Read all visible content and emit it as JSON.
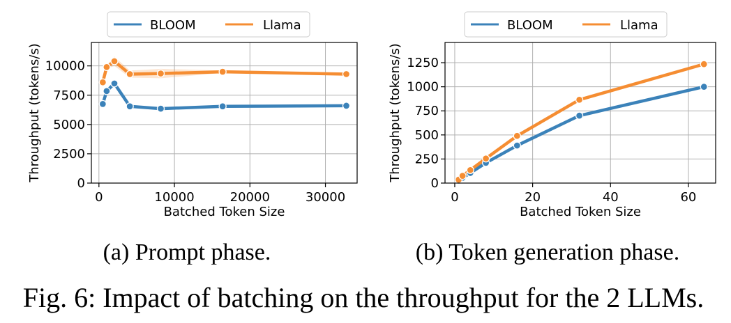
{
  "figure": {
    "caption": "Fig. 6: Impact of batching on the throughput for the 2 LLMs."
  },
  "colors": {
    "bloom": "#3b82b9",
    "llama": "#f58d32",
    "grid": "#b0b0b0"
  },
  "chart_data": [
    {
      "type": "line",
      "subcaption": "(a) Prompt phase.",
      "xlabel": "Batched Token Size",
      "ylabel": "Throughput (tokens/s)",
      "xlim": [
        -1000,
        34200
      ],
      "ylim": [
        0,
        12000
      ],
      "xticks": [
        0,
        10000,
        20000,
        30000
      ],
      "xtick_labels": [
        "0",
        "10000",
        "20000",
        "30000"
      ],
      "yticks": [
        0,
        2500,
        5000,
        7500,
        10000
      ],
      "ytick_labels": [
        "0",
        "2500",
        "5000",
        "7500",
        "10000"
      ],
      "grid": true,
      "legend": {
        "position": "top-center-outside",
        "entries": [
          "BLOOM",
          "Llama"
        ]
      },
      "series": [
        {
          "name": "BLOOM",
          "x": [
            512,
            1024,
            2048,
            4096,
            8192,
            16384,
            32768
          ],
          "y": [
            6750,
            7850,
            8500,
            6550,
            6350,
            6550,
            6600
          ]
        },
        {
          "name": "Llama",
          "x": [
            512,
            1024,
            2048,
            4096,
            8192,
            16384,
            32768
          ],
          "y": [
            8600,
            9900,
            10400,
            9300,
            9350,
            9500,
            9300
          ],
          "band_lo": [
            8500,
            9750,
            10000,
            9000,
            8950,
            9400,
            9200
          ],
          "band_hi": [
            8700,
            10050,
            10800,
            9600,
            9750,
            9600,
            9400
          ]
        }
      ]
    },
    {
      "type": "line",
      "subcaption": "(b) Token generation phase.",
      "xlabel": "Batched Token Size",
      "ylabel": "Throughput (tokens/s)",
      "xlim": [
        -2.5,
        67.0
      ],
      "ylim": [
        0,
        1460
      ],
      "xticks": [
        0,
        20,
        40,
        60
      ],
      "xtick_labels": [
        "0",
        "20",
        "40",
        "60"
      ],
      "yticks": [
        0,
        250,
        500,
        750,
        1000,
        1250
      ],
      "ytick_labels": [
        "0",
        "250",
        "500",
        "750",
        "1000",
        "1250"
      ],
      "grid": true,
      "legend": {
        "position": "top-center-outside",
        "entries": [
          "BLOOM",
          "Llama"
        ]
      },
      "series": [
        {
          "name": "BLOOM",
          "x": [
            1,
            2,
            4,
            8,
            16,
            32,
            64
          ],
          "y": [
            25,
            55,
            105,
            210,
            390,
            700,
            1000
          ]
        },
        {
          "name": "Llama",
          "x": [
            1,
            2,
            4,
            8,
            16,
            32,
            64
          ],
          "y": [
            35,
            75,
            135,
            255,
            490,
            865,
            1235
          ]
        }
      ]
    }
  ]
}
